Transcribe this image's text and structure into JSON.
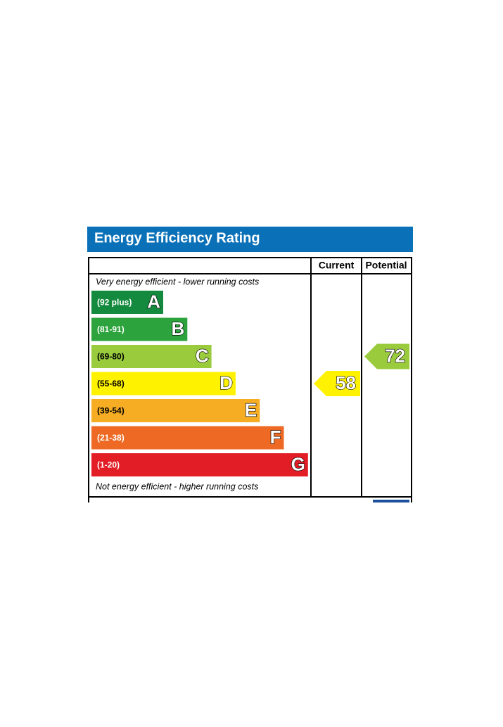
{
  "chart_data": {
    "type": "epc",
    "title": "Energy Efficiency Rating",
    "columns": [
      "Current",
      "Potential"
    ],
    "top_note": "Very energy efficient - lower running costs",
    "bottom_note": "Not energy efficient - higher running costs",
    "bands": [
      {
        "letter": "A",
        "range": "(92 plus)",
        "color": "#138a3e"
      },
      {
        "letter": "B",
        "range": "(81-91)",
        "color": "#2ca33c"
      },
      {
        "letter": "C",
        "range": "(69-80)",
        "color": "#9acb3c"
      },
      {
        "letter": "D",
        "range": "(55-68)",
        "color": "#fff200"
      },
      {
        "letter": "E",
        "range": "(39-54)",
        "color": "#f6ad23"
      },
      {
        "letter": "F",
        "range": "(21-38)",
        "color": "#ee6a24"
      },
      {
        "letter": "G",
        "range": "(1-20)",
        "color": "#e31d25"
      }
    ],
    "current": 58,
    "potential": 72
  }
}
